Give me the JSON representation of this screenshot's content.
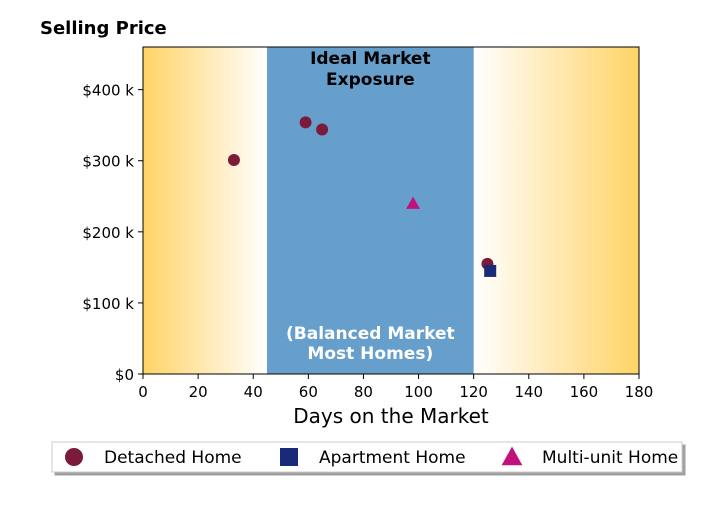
{
  "chart_data": {
    "type": "scatter",
    "title": "Selling Price",
    "xlabel": "Days on the Market",
    "ylabel": "",
    "xlim": [
      0,
      180
    ],
    "ylim": [
      0,
      460000
    ],
    "x_ticks": [
      0,
      20,
      40,
      60,
      80,
      100,
      120,
      140,
      160,
      180
    ],
    "x_tick_labels": [
      "0",
      "20",
      "40",
      "60",
      "80",
      "100",
      "120",
      "140",
      "160",
      "180"
    ],
    "y_ticks": [
      0,
      100000,
      200000,
      300000,
      400000
    ],
    "y_tick_labels": [
      "$0",
      "$100 k",
      "$200 k",
      "$300 k",
      "$400 k"
    ],
    "grid": false,
    "background": {
      "gradient_color": "#ffd366",
      "band": {
        "x_start": 45,
        "x_end": 120,
        "color": "#669fcc"
      }
    },
    "annotations": {
      "top_line1": "Ideal Market",
      "top_line2": "Exposure",
      "bottom_line1": "(Balanced Market",
      "bottom_line2": "Most Homes)"
    },
    "legend_position": "bottom",
    "series": [
      {
        "name": "Detached Home",
        "marker": "circle",
        "color": "#7b1a3a",
        "points": [
          {
            "x": 33,
            "y": 301000
          },
          {
            "x": 59,
            "y": 354000
          },
          {
            "x": 65,
            "y": 344000
          },
          {
            "x": 125,
            "y": 155000
          }
        ]
      },
      {
        "name": "Apartment Home",
        "marker": "square",
        "color": "#1a2a78",
        "points": [
          {
            "x": 126,
            "y": 145000
          }
        ]
      },
      {
        "name": "Multi-unit Home",
        "marker": "triangle",
        "color": "#c0127a",
        "points": [
          {
            "x": 98,
            "y": 240000
          }
        ]
      }
    ]
  }
}
